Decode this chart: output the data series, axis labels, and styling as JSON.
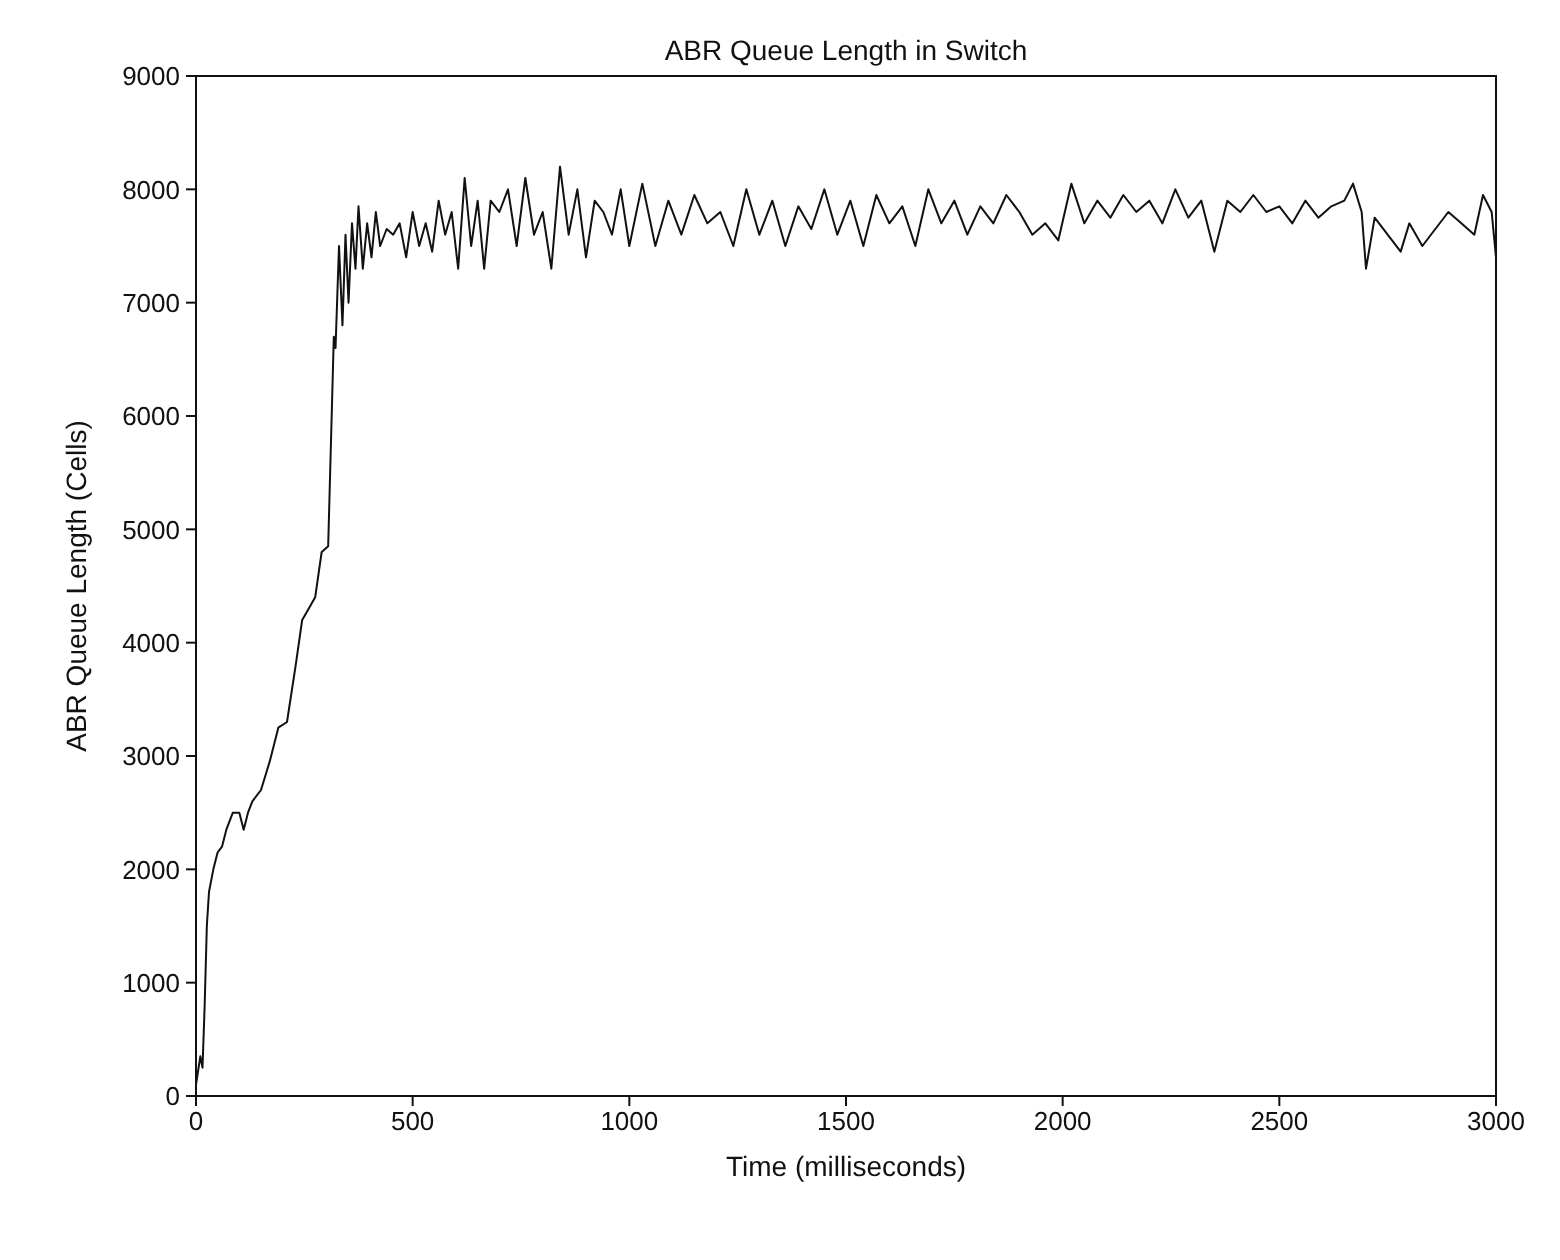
{
  "chart_data": {
    "type": "line",
    "title": "ABR Queue Length in Switch",
    "xlabel": "Time (milliseconds)",
    "ylabel": "ABR Queue Length (Cells)",
    "xlim": [
      0,
      3000
    ],
    "ylim": [
      0,
      9000
    ],
    "xticks": [
      0,
      500,
      1000,
      1500,
      2000,
      2500,
      3000
    ],
    "yticks": [
      0,
      1000,
      2000,
      3000,
      4000,
      5000,
      6000,
      7000,
      8000,
      9000
    ],
    "grid": false,
    "marker": "none",
    "line_style": "solid",
    "series": [
      {
        "color": "#111111",
        "x": [
          0,
          10,
          15,
          20,
          25,
          30,
          40,
          50,
          60,
          70,
          85,
          100,
          110,
          120,
          130,
          150,
          170,
          190,
          210,
          230,
          245,
          260,
          275,
          290,
          305,
          318,
          322,
          330,
          338,
          345,
          352,
          360,
          368,
          375,
          385,
          395,
          405,
          415,
          425,
          440,
          455,
          470,
          485,
          500,
          515,
          530,
          545,
          560,
          575,
          590,
          605,
          620,
          635,
          650,
          665,
          680,
          700,
          720,
          740,
          760,
          780,
          800,
          820,
          840,
          860,
          880,
          900,
          920,
          940,
          960,
          980,
          1000,
          1030,
          1060,
          1090,
          1120,
          1150,
          1180,
          1210,
          1240,
          1270,
          1300,
          1330,
          1360,
          1390,
          1420,
          1450,
          1480,
          1510,
          1540,
          1570,
          1600,
          1630,
          1660,
          1690,
          1720,
          1750,
          1780,
          1810,
          1840,
          1870,
          1900,
          1930,
          1960,
          1990,
          2020,
          2050,
          2080,
          2110,
          2140,
          2170,
          2200,
          2230,
          2260,
          2290,
          2320,
          2350,
          2380,
          2410,
          2440,
          2470,
          2500,
          2530,
          2560,
          2590,
          2620,
          2650,
          2670,
          2690,
          2700,
          2720,
          2750,
          2780,
          2800,
          2830,
          2860,
          2890,
          2920,
          2950,
          2970,
          2990,
          3000
        ],
        "values": [
          100,
          350,
          250,
          800,
          1500,
          1800,
          2000,
          2150,
          2200,
          2350,
          2500,
          2500,
          2350,
          2500,
          2600,
          2700,
          2950,
          3250,
          3300,
          3800,
          4200,
          4300,
          4400,
          4800,
          4850,
          6700,
          6600,
          7500,
          6800,
          7600,
          7000,
          7700,
          7300,
          7850,
          7300,
          7700,
          7400,
          7800,
          7500,
          7650,
          7600,
          7700,
          7400,
          7800,
          7500,
          7700,
          7450,
          7900,
          7600,
          7800,
          7300,
          8100,
          7500,
          7900,
          7300,
          7900,
          7800,
          8000,
          7500,
          8100,
          7600,
          7800,
          7300,
          8200,
          7600,
          8000,
          7400,
          7900,
          7800,
          7600,
          8000,
          7500,
          8050,
          7500,
          7900,
          7600,
          7950,
          7700,
          7800,
          7500,
          8000,
          7600,
          7900,
          7500,
          7850,
          7650,
          8000,
          7600,
          7900,
          7500,
          7950,
          7700,
          7850,
          7500,
          8000,
          7700,
          7900,
          7600,
          7850,
          7700,
          7950,
          7800,
          7600,
          7700,
          7550,
          8050,
          7700,
          7900,
          7750,
          7950,
          7800,
          7900,
          7700,
          8000,
          7750,
          7900,
          7450,
          7900,
          7800,
          7950,
          7800,
          7850,
          7700,
          7900,
          7750,
          7850,
          7900,
          8050,
          7800,
          7300,
          7750,
          7600,
          7450,
          7700,
          7500,
          7650,
          7800,
          7700,
          7600,
          7950,
          7800,
          7400
        ]
      }
    ]
  }
}
